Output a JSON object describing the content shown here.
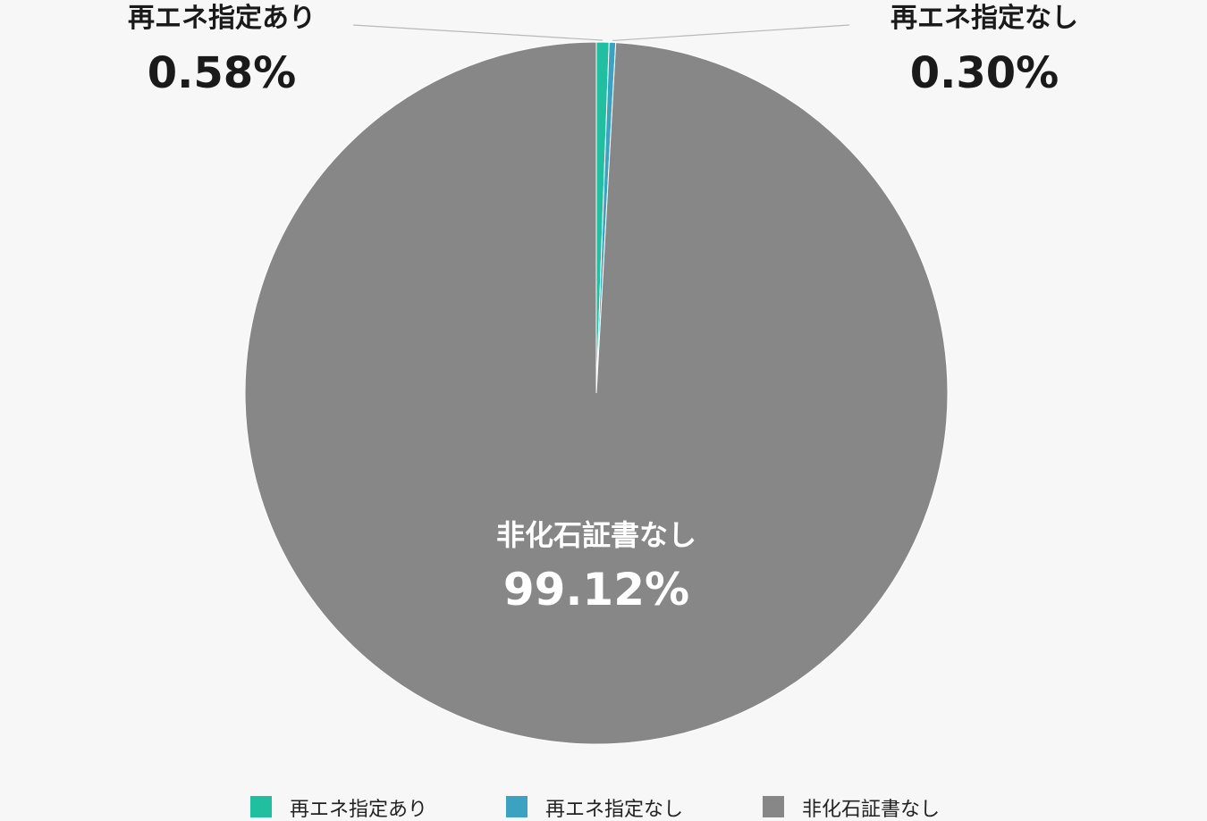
{
  "chart_data": {
    "type": "pie",
    "slices": [
      {
        "name": "再エネ指定あり",
        "value": 0.58,
        "label": "0.58%",
        "color": "#1fbf9f"
      },
      {
        "name": "再エネ指定なし",
        "value": 0.3,
        "label": "0.30%",
        "color": "#3ba3c1"
      },
      {
        "name": "非化石証書なし",
        "value": 99.12,
        "label": "99.12%",
        "color": "#878787"
      }
    ],
    "start_angle_deg": 0,
    "direction": "clockwise",
    "legend_position": "bottom"
  }
}
